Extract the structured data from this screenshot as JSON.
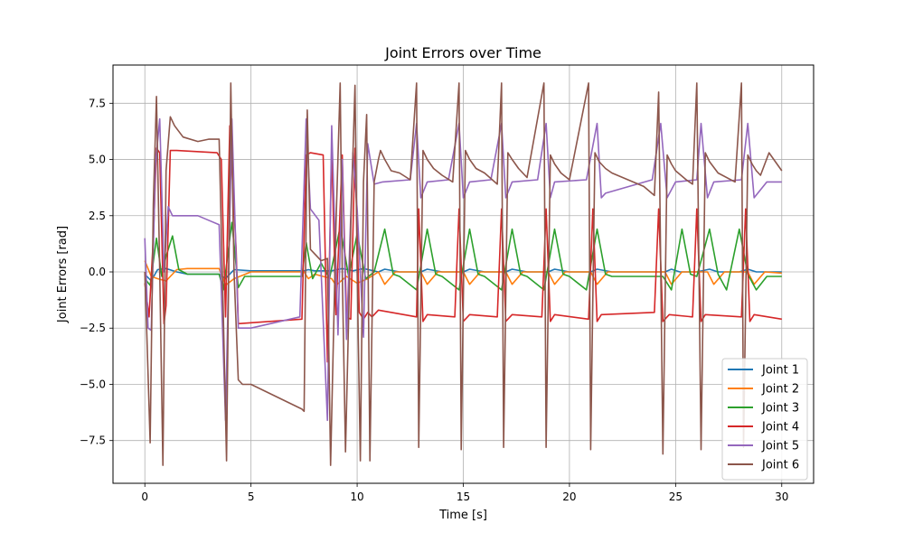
{
  "chart_data": {
    "type": "line",
    "title": "Joint Errors over Time",
    "xlabel": "Time [s]",
    "ylabel": "Joint Errors [rad]",
    "xlim": [
      -1.5,
      31.5
    ],
    "ylim": [
      -9.4,
      9.2
    ],
    "xticks": [
      0,
      5,
      10,
      15,
      20,
      25,
      30
    ],
    "xtick_labels": [
      "0",
      "5",
      "10",
      "15",
      "20",
      "25",
      "30"
    ],
    "yticks": [
      -7.5,
      -5.0,
      -2.5,
      0.0,
      2.5,
      5.0,
      7.5
    ],
    "ytick_labels": [
      "−7.5",
      "−5.0",
      "−2.5",
      "0.0",
      "2.5",
      "5.0",
      "7.5"
    ],
    "grid": true,
    "legend_position": "lower right",
    "series": [
      {
        "name": "Joint 1",
        "color": "#1f77b4",
        "x": [
          0,
          0.3,
          0.6,
          1.0,
          1.5,
          2.0,
          3.5,
          3.8,
          4.2,
          5.0,
          7.5,
          7.7,
          8.0,
          8.8,
          9.3,
          9.8,
          10.3,
          11.0,
          11.3,
          12.0,
          13.0,
          13.3,
          14.0,
          15.0,
          15.3,
          16.0,
          17.0,
          17.3,
          18.0,
          19.0,
          19.3,
          20.0,
          21.0,
          21.3,
          22.0,
          24.5,
          24.8,
          25.2,
          26.0,
          26.6,
          27.0,
          28.0,
          28.4,
          28.8,
          29.5,
          30.0
        ],
        "y": [
          -0.1,
          -0.4,
          0.1,
          0.15,
          0.0,
          -0.1,
          -0.1,
          -0.3,
          0.1,
          0.05,
          0.05,
          0.1,
          0.05,
          0.05,
          0.15,
          0.05,
          0.15,
          0.0,
          0.12,
          0.0,
          0.0,
          0.12,
          0.0,
          0.0,
          0.12,
          0.0,
          0.0,
          0.12,
          0.0,
          0.0,
          0.12,
          0.0,
          0.0,
          0.12,
          0.0,
          0.0,
          0.12,
          0.0,
          0.0,
          0.12,
          0.0,
          0.0,
          0.12,
          0.0,
          0.0,
          0.0
        ]
      },
      {
        "name": "Joint 2",
        "color": "#ff7f0e",
        "x": [
          0,
          0.3,
          0.6,
          1.0,
          1.5,
          2.0,
          3.5,
          3.8,
          4.2,
          5.0,
          7.5,
          7.7,
          8.0,
          8.8,
          9.0,
          9.5,
          10.0,
          10.5,
          11.0,
          11.3,
          11.8,
          13.0,
          13.3,
          13.8,
          15.0,
          15.3,
          15.8,
          17.0,
          17.3,
          17.8,
          19.0,
          19.3,
          19.8,
          21.0,
          21.3,
          21.8,
          24.5,
          24.8,
          25.3,
          26.5,
          26.8,
          27.3,
          28.4,
          28.7,
          29.2,
          30.0
        ],
        "y": [
          0.5,
          -0.2,
          -0.3,
          -0.4,
          0.1,
          0.15,
          0.15,
          -0.6,
          -0.3,
          0.0,
          0.0,
          -0.3,
          -0.1,
          -0.3,
          -0.6,
          -0.2,
          -0.5,
          -0.3,
          0.0,
          -0.55,
          0.0,
          0.0,
          -0.55,
          0.0,
          0.0,
          -0.55,
          0.0,
          0.0,
          -0.55,
          0.0,
          0.0,
          -0.55,
          0.0,
          0.0,
          -0.55,
          0.0,
          0.0,
          -0.55,
          0.0,
          0.0,
          -0.55,
          0.0,
          0.0,
          -0.55,
          0.0,
          -0.05
        ]
      },
      {
        "name": "Joint 3",
        "color": "#2ca02c",
        "x": [
          0,
          0.25,
          0.55,
          0.8,
          1.0,
          1.3,
          1.6,
          2.0,
          3.5,
          3.7,
          4.1,
          4.4,
          4.7,
          5.0,
          7.4,
          7.6,
          7.9,
          8.3,
          8.7,
          9.2,
          9.6,
          10.0,
          10.4,
          10.8,
          11.3,
          11.7,
          12.0,
          12.8,
          13.3,
          13.7,
          14.0,
          14.8,
          15.3,
          15.7,
          16.0,
          16.8,
          17.3,
          17.7,
          18.0,
          18.8,
          19.3,
          19.7,
          20.0,
          20.8,
          21.3,
          21.7,
          22.0,
          24.4,
          24.8,
          25.3,
          25.7,
          26.0,
          26.6,
          27.0,
          27.4,
          28.0,
          28.4,
          28.8,
          29.3,
          30.0
        ],
        "y": [
          -0.3,
          -0.6,
          1.5,
          -0.2,
          0.7,
          1.6,
          0.1,
          -0.1,
          -0.1,
          -0.8,
          2.2,
          -0.7,
          -0.2,
          -0.2,
          -0.2,
          1.3,
          -0.3,
          0.4,
          -0.3,
          2.0,
          -0.2,
          1.7,
          -0.3,
          0.0,
          1.9,
          -0.1,
          -0.2,
          -0.8,
          1.9,
          -0.1,
          -0.2,
          -0.8,
          1.9,
          -0.1,
          -0.2,
          -0.8,
          1.9,
          -0.1,
          -0.2,
          -0.8,
          1.9,
          -0.1,
          -0.2,
          -0.8,
          1.9,
          -0.1,
          -0.2,
          -0.2,
          -0.8,
          1.9,
          -0.1,
          -0.2,
          1.9,
          -0.1,
          -0.8,
          1.9,
          -0.1,
          -0.8,
          -0.2,
          -0.2
        ]
      },
      {
        "name": "Joint 4",
        "color": "#d62728",
        "x": [
          0,
          0.2,
          0.4,
          0.55,
          0.7,
          0.9,
          1.0,
          1.2,
          1.5,
          3.4,
          3.6,
          3.8,
          4.0,
          4.3,
          4.4,
          7.4,
          7.6,
          7.8,
          8.4,
          8.6,
          8.8,
          9.0,
          9.3,
          9.5,
          9.7,
          9.9,
          10.1,
          10.3,
          10.5,
          10.7,
          11.0,
          12.8,
          12.9,
          13.1,
          13.3,
          14.6,
          14.8,
          15.0,
          15.3,
          16.6,
          16.8,
          17.0,
          17.3,
          18.7,
          18.9,
          19.1,
          19.3,
          20.9,
          21.1,
          21.3,
          21.5,
          24.0,
          24.2,
          24.4,
          24.7,
          25.8,
          26.0,
          26.2,
          26.4,
          28.1,
          28.3,
          28.5,
          28.7,
          30.0
        ],
        "y": [
          -0.5,
          -2.0,
          1.5,
          5.5,
          5.3,
          -2.3,
          -1.5,
          5.4,
          5.4,
          5.3,
          5.0,
          -2.0,
          6.5,
          1.0,
          -2.3,
          -2.1,
          5.2,
          5.3,
          5.2,
          -4.0,
          5.5,
          -1.9,
          5.2,
          -2.0,
          -2.1,
          5.5,
          -1.8,
          -2.1,
          -1.8,
          -2.0,
          -1.7,
          -2.0,
          2.8,
          -2.2,
          -1.9,
          -2.0,
          2.8,
          -2.2,
          -1.9,
          -2.0,
          2.8,
          -2.2,
          -1.9,
          -2.0,
          2.8,
          -2.2,
          -1.9,
          -2.1,
          2.8,
          -2.2,
          -1.9,
          -1.8,
          2.8,
          -2.2,
          -1.9,
          -2.0,
          2.8,
          -2.2,
          -1.9,
          -2.0,
          2.8,
          -2.2,
          -1.9,
          -2.1
        ]
      },
      {
        "name": "Joint 5",
        "color": "#9467bd",
        "x": [
          0,
          0.15,
          0.3,
          0.5,
          0.7,
          0.9,
          1.1,
          1.3,
          2.5,
          3.0,
          3.5,
          3.8,
          4.1,
          4.4,
          5.0,
          7.3,
          7.6,
          7.8,
          8.2,
          8.6,
          8.8,
          9.1,
          9.3,
          9.5,
          9.8,
          10.0,
          10.3,
          10.5,
          10.8,
          11.2,
          12.5,
          12.8,
          13.0,
          13.3,
          14.3,
          14.8,
          15.0,
          15.3,
          16.3,
          16.8,
          17.0,
          17.3,
          18.5,
          18.9,
          19.1,
          19.3,
          20.8,
          21.3,
          21.5,
          21.7,
          23.9,
          24.3,
          24.6,
          25.0,
          26.0,
          26.2,
          26.5,
          26.8,
          28.1,
          28.4,
          28.7,
          29.3,
          30.0
        ],
        "y": [
          1.5,
          -2.5,
          -2.6,
          4.8,
          6.8,
          0.0,
          2.9,
          2.5,
          2.5,
          2.3,
          2.1,
          -6.6,
          6.8,
          -2.5,
          -2.5,
          -2.0,
          6.8,
          2.8,
          2.3,
          -6.6,
          6.5,
          -2.8,
          5.0,
          -3.0,
          5.3,
          2.8,
          -2.9,
          5.7,
          3.9,
          4.0,
          4.1,
          6.6,
          3.3,
          4.0,
          4.1,
          6.6,
          3.3,
          4.0,
          4.1,
          6.6,
          3.3,
          4.0,
          4.1,
          6.6,
          3.3,
          4.0,
          4.1,
          6.6,
          3.3,
          3.5,
          4.1,
          6.6,
          3.3,
          4.0,
          4.1,
          6.6,
          3.3,
          4.0,
          4.1,
          6.6,
          3.3,
          4.0,
          4.0
        ]
      },
      {
        "name": "Joint 6",
        "color": "#8c564b",
        "x": [
          0,
          0.1,
          0.25,
          0.4,
          0.55,
          0.7,
          0.85,
          1.0,
          1.2,
          1.4,
          1.8,
          2.5,
          3.0,
          3.5,
          3.7,
          3.85,
          4.05,
          4.2,
          4.4,
          4.6,
          5.0,
          7.4,
          7.5,
          7.65,
          7.8,
          8.3,
          8.6,
          8.75,
          9.0,
          9.2,
          9.3,
          9.45,
          9.7,
          9.9,
          10.0,
          10.15,
          10.3,
          10.45,
          10.6,
          10.8,
          11.0,
          11.1,
          11.3,
          11.6,
          12.0,
          12.5,
          12.8,
          12.9,
          13.1,
          13.3,
          13.6,
          14.0,
          14.5,
          14.8,
          14.9,
          15.1,
          15.3,
          15.6,
          16.0,
          16.6,
          16.8,
          16.9,
          17.1,
          17.3,
          17.6,
          18.0,
          18.8,
          18.9,
          19.1,
          19.3,
          19.6,
          20.0,
          20.9,
          21.0,
          21.2,
          21.4,
          21.7,
          22.0,
          23.5,
          24.0,
          24.2,
          24.4,
          24.6,
          24.8,
          25.0,
          25.5,
          25.8,
          26.0,
          26.2,
          26.4,
          26.6,
          27.0,
          27.8,
          28.1,
          28.2,
          28.4,
          28.6,
          28.8,
          29.0,
          29.4,
          30.0
        ],
        "y": [
          0.0,
          -3.0,
          -7.6,
          3.0,
          7.8,
          0.0,
          -8.6,
          4.5,
          6.9,
          6.5,
          6.0,
          5.8,
          5.9,
          5.9,
          -2.0,
          -8.4,
          8.4,
          0.0,
          -4.8,
          -5.0,
          -5.0,
          -6.1,
          -6.2,
          7.2,
          1.0,
          0.5,
          0.6,
          -8.6,
          2.0,
          8.4,
          0.0,
          -8.0,
          2.0,
          8.3,
          0.0,
          -8.4,
          4.0,
          7.0,
          -8.4,
          4.0,
          5.0,
          5.4,
          5.0,
          4.5,
          4.4,
          4.1,
          8.4,
          -7.8,
          5.4,
          5.0,
          4.6,
          4.3,
          4.0,
          8.4,
          -7.9,
          5.4,
          5.0,
          4.6,
          4.4,
          3.9,
          8.4,
          -7.8,
          5.3,
          5.0,
          4.6,
          4.2,
          8.4,
          -7.8,
          5.2,
          4.8,
          4.4,
          4.1,
          8.4,
          -7.9,
          5.3,
          4.9,
          4.6,
          4.4,
          3.8,
          3.4,
          8.0,
          -8.1,
          5.2,
          4.8,
          4.5,
          4.1,
          3.9,
          8.4,
          -7.9,
          5.3,
          4.9,
          4.4,
          4.0,
          8.4,
          -7.8,
          5.2,
          4.8,
          4.5,
          4.3,
          5.3,
          4.5
        ]
      }
    ]
  }
}
